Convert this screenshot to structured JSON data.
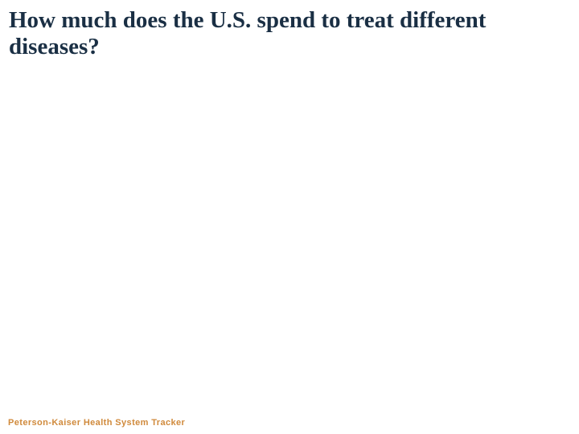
{
  "slide": {
    "title": {
      "line1": "How much does the U.S. spend to treat different",
      "line2": "diseases?"
    },
    "footer": {
      "label": "Peterson-Kaiser Health System Tracker"
    },
    "colors": {
      "background": "#ffffff",
      "title_text": "#1a2f44",
      "footer_text": "#d08a3c"
    }
  }
}
